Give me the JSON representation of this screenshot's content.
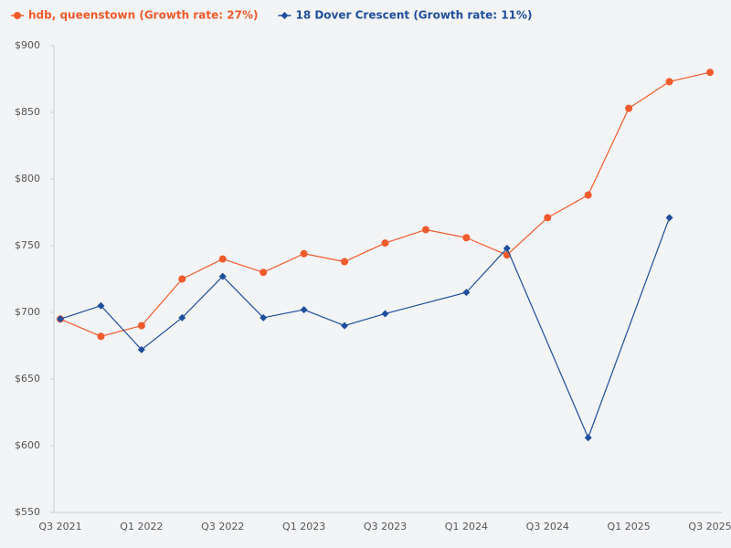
{
  "chart_data": {
    "type": "line",
    "categories": [
      "Q3 2021",
      null,
      "Q1 2022",
      null,
      "Q3 2022",
      null,
      "Q1 2023",
      null,
      "Q3 2023",
      null,
      "Q1 2024",
      null,
      "Q3 2024",
      null,
      "Q1 2025",
      null,
      "Q3 2025"
    ],
    "series": [
      {
        "name": "hdb, queenstown (Growth rate: 27%)",
        "color": "#f15a2b",
        "marker": "circle",
        "values": [
          695,
          682,
          690,
          725,
          740,
          730,
          744,
          738,
          752,
          762,
          756,
          743,
          771,
          788,
          853,
          873,
          880
        ]
      },
      {
        "name": "18 Dover Crescent (Growth rate: 11%)",
        "color": "#1f4e9c",
        "marker": "diamond",
        "values": [
          695,
          705,
          672,
          696,
          727,
          696,
          702,
          690,
          699,
          null,
          715,
          748,
          null,
          606,
          null,
          771,
          null
        ]
      }
    ],
    "ylim": [
      550,
      900
    ],
    "yticks": [
      {
        "value": 550,
        "label": "$550"
      },
      {
        "value": 600,
        "label": "$600"
      },
      {
        "value": 650,
        "label": "$650"
      },
      {
        "value": 700,
        "label": "$700"
      },
      {
        "value": 750,
        "label": "$750"
      },
      {
        "value": 800,
        "label": "$800"
      },
      {
        "value": 850,
        "label": "$850"
      },
      {
        "value": 900,
        "label": "$900"
      }
    ],
    "legend": "top-left"
  }
}
